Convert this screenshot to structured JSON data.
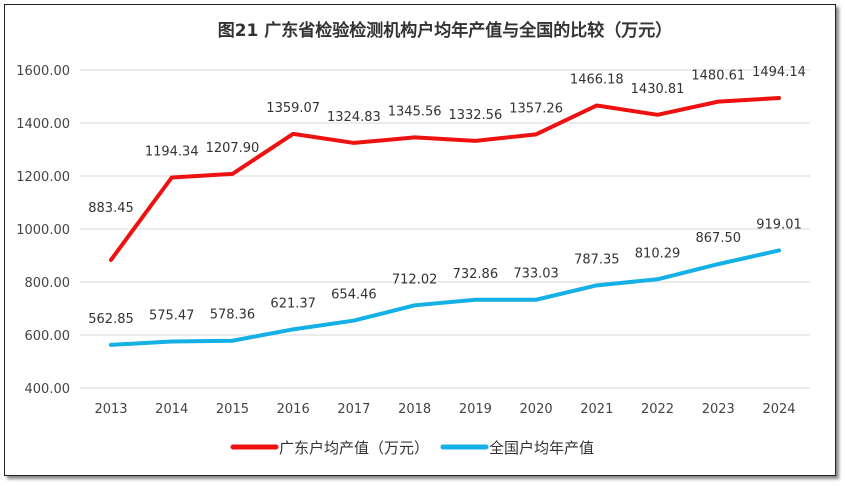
{
  "chart_data": {
    "type": "line",
    "title": "图21  广东省检验检测机构户均年产值与全国的比较（万元）",
    "categories": [
      "2013",
      "2014",
      "2015",
      "2016",
      "2017",
      "2018",
      "2019",
      "2020",
      "2021",
      "2022",
      "2023",
      "2024"
    ],
    "series": [
      {
        "name": "广东户均产值（万元）",
        "color": "#ee1111",
        "values": [
          883.45,
          1194.34,
          1207.9,
          1359.07,
          1324.83,
          1345.56,
          1332.56,
          1357.26,
          1466.18,
          1430.81,
          1480.61,
          1494.14
        ],
        "labels": [
          "883.45",
          "1194.34",
          "1207.90",
          "1359.07",
          "1324.83",
          "1345.56",
          "1332.56",
          "1357.26",
          "1466.18",
          "1430.81",
          "1480.61",
          "1494.14"
        ]
      },
      {
        "name": "全国户均年产值",
        "color": "#14b0e6",
        "values": [
          562.85,
          575.47,
          578.36,
          621.37,
          654.46,
          712.02,
          732.86,
          733.03,
          787.35,
          810.29,
          867.5,
          919.01
        ],
        "labels": [
          "562.85",
          "575.47",
          "578.36",
          "621.37",
          "654.46",
          "712.02",
          "732.86",
          "733.03",
          "787.35",
          "810.29",
          "867.50",
          "919.01"
        ]
      }
    ],
    "yticks": [
      "400.00",
      "600.00",
      "800.00",
      "1000.00",
      "1200.00",
      "1400.00",
      "1600.00"
    ],
    "ylim": [
      400,
      1600
    ],
    "grid": true,
    "legend": "bottom"
  }
}
